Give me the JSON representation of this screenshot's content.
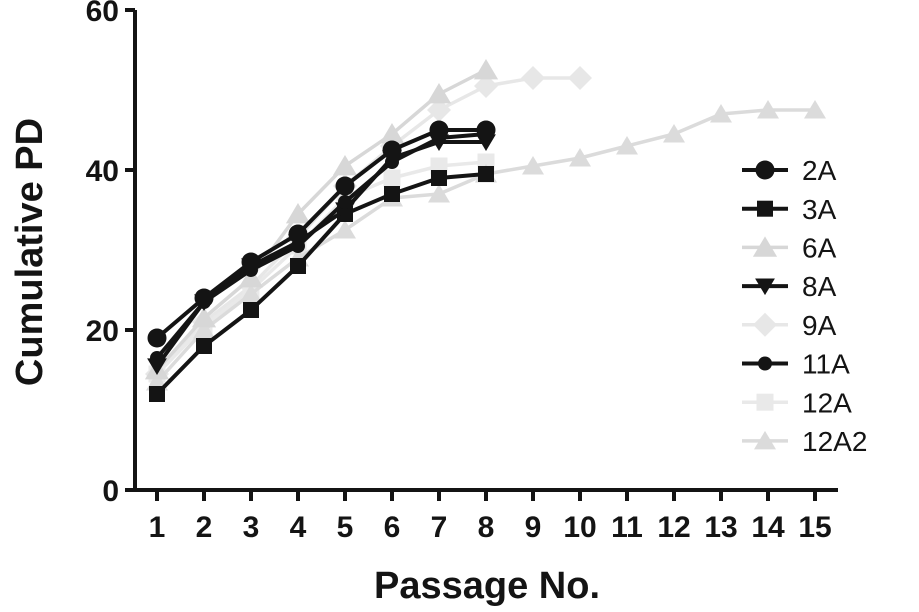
{
  "chart_data": {
    "type": "line",
    "title": "",
    "xlabel": "Passage No.",
    "ylabel": "Cumulative PD",
    "xlim": [
      0.5,
      15.5
    ],
    "ylim": [
      0,
      60
    ],
    "x_ticks": [
      1,
      2,
      3,
      4,
      5,
      6,
      7,
      8,
      9,
      10,
      11,
      12,
      13,
      14,
      15
    ],
    "y_ticks": [
      0,
      20,
      40,
      60
    ],
    "grid": false,
    "legend_position": "right",
    "series": [
      {
        "name": "2A",
        "marker": "circle",
        "color": "#141414",
        "x": [
          1,
          2,
          3,
          4,
          5,
          6,
          7,
          8
        ],
        "values": [
          19,
          24,
          28.5,
          32,
          38,
          42.5,
          45,
          45
        ]
      },
      {
        "name": "3A",
        "marker": "square",
        "color": "#141414",
        "x": [
          1,
          2,
          3,
          4,
          5,
          6,
          7,
          8
        ],
        "values": [
          12,
          18,
          22.5,
          28,
          34.5,
          37,
          39,
          39.5
        ]
      },
      {
        "name": "6A",
        "marker": "triangle-up",
        "color": "#d7d7d7",
        "x": [
          1,
          2,
          3,
          4,
          5,
          6,
          7,
          8
        ],
        "values": [
          15,
          21.5,
          26.5,
          34.5,
          40.5,
          44.5,
          49.5,
          52.5
        ]
      },
      {
        "name": "8A",
        "marker": "triangle-down",
        "color": "#141414",
        "x": [
          1,
          2,
          3,
          4,
          5,
          6,
          7,
          8
        ],
        "values": [
          15.5,
          23.5,
          28,
          31,
          35,
          41.5,
          43.5,
          43.5
        ]
      },
      {
        "name": "9A",
        "marker": "diamond",
        "color": "#e7e7e7",
        "x": [
          1,
          2,
          3,
          4,
          5,
          6,
          7,
          8,
          9,
          10
        ],
        "values": [
          14.5,
          21,
          25.5,
          31.5,
          38,
          43,
          47.5,
          50.5,
          51.5,
          51.5
        ]
      },
      {
        "name": "11A",
        "marker": "circle-small",
        "color": "#141414",
        "x": [
          1,
          2,
          3,
          4,
          5,
          6,
          7,
          8
        ],
        "values": [
          16.5,
          23.5,
          27.5,
          30.5,
          36,
          41,
          44,
          44.5
        ]
      },
      {
        "name": "12A",
        "marker": "square",
        "color": "#e9e9e9",
        "x": [
          1,
          2,
          3,
          4,
          5,
          6,
          7,
          8
        ],
        "values": [
          14.5,
          20.5,
          25,
          30.5,
          36.5,
          39,
          40.5,
          41
        ]
      },
      {
        "name": "12A2",
        "marker": "triangle-up",
        "color": "#dbdbdb",
        "x": [
          1,
          2,
          3,
          4,
          5,
          6,
          7,
          8,
          9,
          10,
          11,
          12,
          13,
          14,
          15
        ],
        "values": [
          13.5,
          20,
          24.5,
          29,
          32.5,
          36.5,
          37,
          39.5,
          40.5,
          41.5,
          43,
          44.5,
          47,
          47.5,
          47.5
        ]
      }
    ]
  }
}
